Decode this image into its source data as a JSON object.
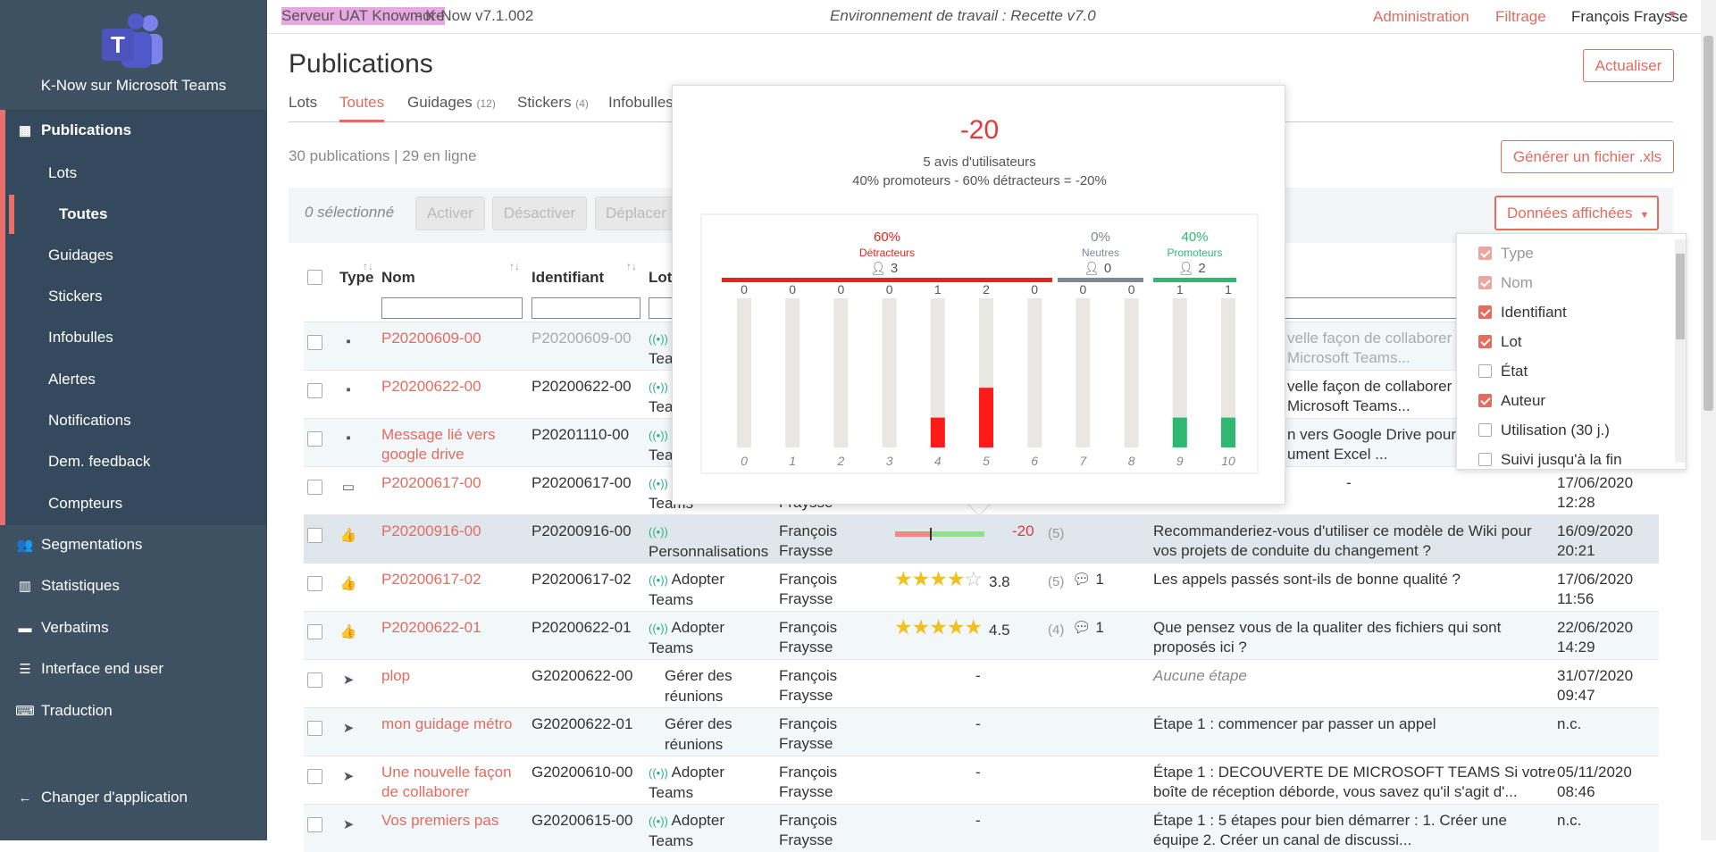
{
  "sidebar": {
    "app_name": "K-Now sur Microsoft Teams",
    "items": [
      {
        "label": "Publications",
        "icon": "grid-icon"
      },
      {
        "label": "Lots"
      },
      {
        "label": "Toutes"
      },
      {
        "label": "Guidages"
      },
      {
        "label": "Stickers"
      },
      {
        "label": "Infobulles"
      },
      {
        "label": "Alertes"
      },
      {
        "label": "Notifications"
      },
      {
        "label": "Dem. feedback"
      },
      {
        "label": "Compteurs"
      },
      {
        "label": "Segmentations",
        "icon": "users-icon"
      },
      {
        "label": "Statistiques",
        "icon": "bar-chart-icon"
      },
      {
        "label": "Verbatims",
        "icon": "comment-icon"
      },
      {
        "label": "Interface end user",
        "icon": "list-icon"
      },
      {
        "label": "Traduction",
        "icon": "translate-icon"
      }
    ],
    "change_app": "Changer d'application"
  },
  "topbar": {
    "server": "Serveur UAT Knowmore",
    "version": " - K-Now v7.1.002",
    "environment": "Environnement de travail : Recette v7.0",
    "admin": "Administration",
    "filter": "Filtrage",
    "user": "François Fraysse"
  },
  "page": {
    "title": "Publications",
    "refresh": "Actualiser",
    "tabs": [
      {
        "label": "Lots",
        "count": ""
      },
      {
        "label": "Toutes",
        "count": ""
      },
      {
        "label": "Guidages",
        "count": "(12)"
      },
      {
        "label": "Stickers",
        "count": "(4)"
      },
      {
        "label": "Infobulles",
        "count": ""
      }
    ],
    "count": "30 publications | 29 en ligne",
    "xls": "Générer un fichier .xls",
    "selected": "0 sélectionné",
    "buttons": [
      "Activer",
      "Désactiver",
      "Déplacer"
    ],
    "columns_button": "Données affichées"
  },
  "column_menu": [
    {
      "label": "Type",
      "checked": true,
      "disabled": true
    },
    {
      "label": "Nom",
      "checked": true,
      "disabled": true
    },
    {
      "label": "Identifiant",
      "checked": true,
      "disabled": false
    },
    {
      "label": "Lot",
      "checked": true,
      "disabled": false
    },
    {
      "label": "État",
      "checked": false,
      "disabled": false
    },
    {
      "label": "Auteur",
      "checked": true,
      "disabled": false
    },
    {
      "label": "Utilisation (30 j.)",
      "checked": false,
      "disabled": false
    },
    {
      "label": "Suivi jusqu'à la fin",
      "checked": false,
      "disabled": false
    }
  ],
  "table": {
    "headers": {
      "type": "Type",
      "nom": "Nom",
      "identifiant": "Identifiant",
      "lot": "Lot"
    },
    "rows": [
      {
        "type_icon": "sticker-icon",
        "nom": "P20200609-00",
        "id": "P20200609-00",
        "lot": "",
        "lot2": "Teams",
        "desc": "velle façon de collaborer a",
        "desc2": "Microsoft Teams...",
        "date": "",
        "time": "",
        "grey": true
      },
      {
        "type_icon": "sticker-icon",
        "nom": "P20200622-00",
        "id": "P20200622-00",
        "lot": "",
        "lot2": "Teams",
        "desc": "velle façon de collaborer a",
        "desc2": "Microsoft Teams...",
        "date": "",
        "time": ""
      },
      {
        "type_icon": "sticker-icon",
        "nom": "Message lié vers",
        "nom2": "google drive",
        "id": "P20201110-00",
        "lot": "",
        "lot2": "Teams",
        "desc": "n vers Google Drive pour e",
        "desc2": "ument Excel ...",
        "date": "",
        "time": ""
      },
      {
        "type_icon": "tooltip-icon",
        "nom": "P20200617-00",
        "id": "P20200617-00",
        "lot": "",
        "lot2": "Teams",
        "author2": "Fraysse",
        "desc": "-",
        "date": "17/06/2020",
        "time": "12:28"
      },
      {
        "type_icon": "thumbs-up-icon",
        "nom": "P20200916-00",
        "id": "P20200916-00",
        "lot": "",
        "lot2": "Personnalisations",
        "author": "François",
        "author2": "Fraysse",
        "score": "-20",
        "n": "(5)",
        "desc": "Recommanderiez-vous d'utiliser ce modèle de Wiki pour",
        "desc2": "vos projets de conduite du changement ?",
        "date": "16/09/2020",
        "time": "20:21",
        "nps": 0.2
      },
      {
        "type_icon": "thumbs-up-icon",
        "nom": "P20200617-02",
        "id": "P20200617-02",
        "lot": "Adopter",
        "lot2": "Teams",
        "author": "François",
        "author2": "Fraysse",
        "rating": 3.8,
        "rating_label": "3.8",
        "n": "(5)",
        "comments": "1",
        "desc": "Les appels passés sont-ils de bonne qualité ?",
        "date": "17/06/2020",
        "time": "11:56"
      },
      {
        "type_icon": "thumbs-up-icon",
        "nom": "P20200622-01",
        "id": "P20200622-01",
        "lot": "Adopter",
        "lot2": "Teams",
        "author": "François",
        "author2": "Fraysse",
        "rating": 4.5,
        "rating_label": "4.5",
        "n": "(4)",
        "comments": "1",
        "desc": "Que pensez vous de la qualiter des fichiers qui sont",
        "desc2": "proposés ici ?",
        "date": "22/06/2020",
        "time": "14:29"
      },
      {
        "type_icon": "navigation-icon",
        "nom": "plop",
        "id": "G20200622-00",
        "lot": "Gérer des",
        "lot2": "réunions",
        "author": "François",
        "author2": "Fraysse",
        "dash": "-",
        "desc": "Aucune étape",
        "desc_italic": true,
        "date": "31/07/2020",
        "time": "09:47"
      },
      {
        "type_icon": "navigation-icon",
        "nom": "mon guidage métro",
        "id": "G20200622-01",
        "lot": "Gérer des",
        "lot2": "réunions",
        "author": "François",
        "author2": "Fraysse",
        "dash": "-",
        "desc": "Étape 1 : commencer par passer un appel",
        "date": "n.c.",
        "time": ""
      },
      {
        "type_icon": "navigation-icon",
        "nom": "Une nouvelle façon",
        "nom2": "de collaborer",
        "id": "G20200610-00",
        "lot": "Adopter",
        "lot2": "Teams",
        "author": "François",
        "author2": "Fraysse",
        "dash": "-",
        "desc": "Étape 1 :   DECOUVERTE DE MICROSOFT TEAMS Si votre",
        "desc2": "boîte de réception déborde, vous savez qu'il s'agit d'...",
        "date": "05/11/2020",
        "time": "08:46"
      },
      {
        "type_icon": "navigation-icon",
        "nom": "Vos premiers pas",
        "id": "G20200615-00",
        "lot": "Adopter",
        "lot2": "Teams",
        "author": "François",
        "author2": "Fraysse",
        "dash": "-",
        "desc": "Étape 1 :  5 étapes pour bien démarrer  :   1. Créer une",
        "desc2": "équipe 2. Créer un canal de discussi...",
        "date": "n.c.",
        "time": ""
      }
    ]
  },
  "popup": {
    "score": "-20",
    "avis": "5 avis d'utilisateurs",
    "formula": "40% promoteurs - 60% détracteurs = -20%",
    "groups": [
      {
        "pct": "60%",
        "label": "Détracteurs",
        "count": "3",
        "color": "#e62222"
      },
      {
        "pct": "0%",
        "label": "Neutres",
        "count": "0",
        "color": "#7c8896"
      },
      {
        "pct": "40%",
        "label": "Promoteurs",
        "count": "2",
        "color": "#2eb872"
      }
    ]
  },
  "chart_data": {
    "type": "bar",
    "categories": [
      "0",
      "1",
      "2",
      "3",
      "4",
      "5",
      "6",
      "7",
      "8",
      "9",
      "10"
    ],
    "values": [
      0,
      0,
      0,
      0,
      1,
      2,
      0,
      0,
      0,
      1,
      1
    ],
    "ylim": [
      0,
      5
    ],
    "colors": {
      "detractor": "#ff1a1a",
      "neutral": "#7c8896",
      "promoter": "#2eb872",
      "track": "#e9e6e4"
    }
  }
}
